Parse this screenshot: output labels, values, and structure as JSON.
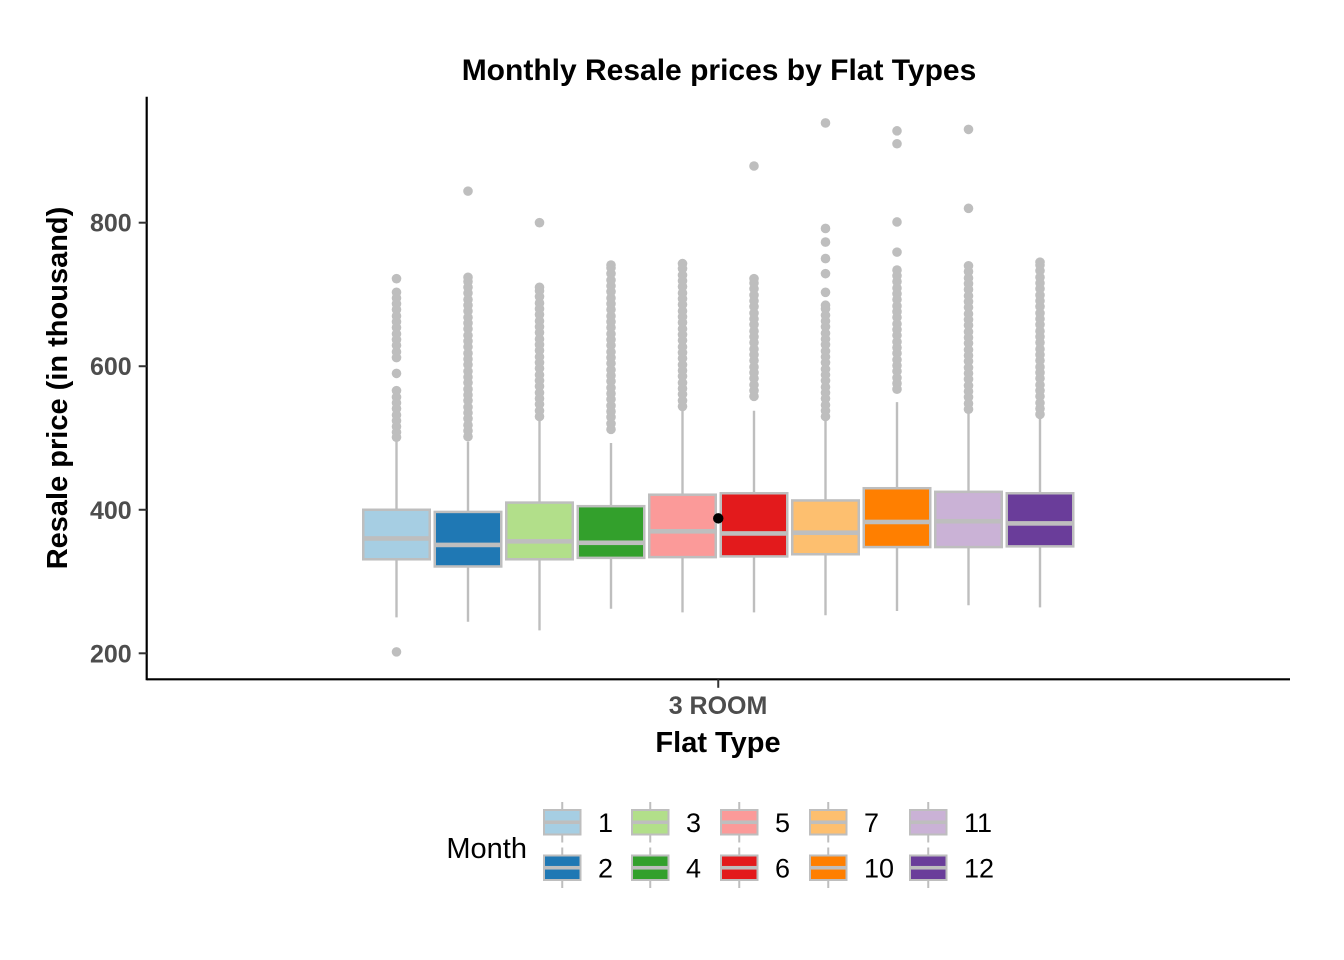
{
  "chart_data": {
    "type": "boxplot",
    "title": "Monthly Resale prices by Flat Types",
    "xlabel": "Flat Type",
    "ylabel": "Resale price (in thousand)",
    "category": "3 ROOM",
    "y_ticks": [
      "200",
      "400",
      "600",
      "800"
    ],
    "y_tick_values": [
      200,
      400,
      600,
      800
    ],
    "ylim": [
      164,
      976
    ],
    "grid": false,
    "legend_title": "Month",
    "legend_position": "bottom",
    "style_colors": {
      "box_border_gray": "#BEBEBE",
      "axis_line": "#000000",
      "tick_text": "#4D4D4D",
      "outlier_gray": "#BEBEBE",
      "special_point_black": "#000000"
    },
    "series": [
      {
        "month": "1",
        "color": "#A6CEE3",
        "lower": 250,
        "q1": 331,
        "median": 360,
        "q3": 400,
        "upper": 497,
        "outliers": [
          202,
          501,
          508,
          516,
          524,
          532,
          541,
          549,
          557,
          566,
          590,
          612,
          620,
          629,
          637,
          645,
          654,
          662,
          670,
          679,
          687,
          695,
          703,
          722
        ]
      },
      {
        "month": "2",
        "color": "#1F78B4",
        "lower": 244,
        "q1": 321,
        "median": 351,
        "q3": 397,
        "upper": 495,
        "outliers": [
          502,
          510,
          518,
          527,
          535,
          543,
          552,
          560,
          568,
          577,
          585,
          593,
          602,
          610,
          618,
          627,
          635,
          643,
          652,
          660,
          668,
          677,
          685,
          693,
          702,
          710,
          718,
          724,
          844
        ]
      },
      {
        "month": "3",
        "color": "#B2DF8A",
        "lower": 232,
        "q1": 331,
        "median": 356,
        "q3": 410,
        "upper": 525,
        "outliers": [
          530,
          538,
          547,
          555,
          563,
          572,
          580,
          588,
          597,
          605,
          613,
          622,
          630,
          638,
          647,
          655,
          663,
          672,
          680,
          688,
          697,
          705,
          710,
          800
        ]
      },
      {
        "month": "4",
        "color": "#33A02C",
        "lower": 262,
        "q1": 333,
        "median": 354,
        "q3": 405,
        "upper": 493,
        "outliers": [
          512,
          520,
          529,
          537,
          545,
          554,
          562,
          570,
          579,
          587,
          595,
          604,
          612,
          620,
          629,
          637,
          645,
          654,
          662,
          670,
          679,
          687,
          695,
          704,
          712,
          720,
          729,
          737,
          741
        ]
      },
      {
        "month": "5",
        "color": "#FB9A99",
        "lower": 257,
        "q1": 334,
        "median": 370,
        "q3": 421,
        "upper": 538,
        "outliers": [
          544,
          552,
          561,
          569,
          577,
          586,
          594,
          602,
          611,
          619,
          627,
          636,
          644,
          652,
          661,
          669,
          677,
          686,
          694,
          702,
          711,
          719,
          727,
          736,
          743
        ]
      },
      {
        "month": "6",
        "color": "#E31A1C",
        "lower": 257,
        "q1": 335,
        "median": 367,
        "q3": 423,
        "upper": 538,
        "outliers": [
          558,
          566,
          574,
          583,
          591,
          599,
          608,
          616,
          624,
          633,
          641,
          649,
          658,
          666,
          674,
          683,
          691,
          699,
          708,
          716,
          722,
          879
        ]
      },
      {
        "month": "7",
        "color": "#FDBF6F",
        "lower": 253,
        "q1": 338,
        "median": 368,
        "q3": 413,
        "upper": 527,
        "outliers": [
          530,
          538,
          546,
          555,
          563,
          571,
          580,
          588,
          596,
          605,
          613,
          621,
          630,
          638,
          646,
          655,
          663,
          671,
          680,
          685,
          703,
          729,
          750,
          773,
          792,
          939
        ]
      },
      {
        "month": "10",
        "color": "#FF7F00",
        "lower": 259,
        "q1": 348,
        "median": 383,
        "q3": 430,
        "upper": 550,
        "outliers": [
          568,
          576,
          584,
          593,
          601,
          609,
          618,
          626,
          634,
          643,
          651,
          659,
          668,
          676,
          684,
          693,
          701,
          709,
          718,
          726,
          734,
          759,
          801,
          910,
          928
        ]
      },
      {
        "month": "11",
        "color": "#CAB2D6",
        "lower": 267,
        "q1": 348,
        "median": 384,
        "q3": 425,
        "upper": 536,
        "outliers": [
          540,
          548,
          557,
          565,
          573,
          582,
          590,
          598,
          607,
          615,
          623,
          632,
          640,
          648,
          657,
          665,
          673,
          682,
          690,
          698,
          707,
          715,
          723,
          732,
          740,
          820,
          930
        ]
      },
      {
        "month": "12",
        "color": "#6A3D9A",
        "lower": 264,
        "q1": 349,
        "median": 381,
        "q3": 423,
        "upper": 530,
        "outliers": [
          533,
          541,
          549,
          558,
          566,
          574,
          583,
          591,
          599,
          608,
          616,
          624,
          633,
          641,
          649,
          658,
          666,
          674,
          683,
          691,
          699,
          708,
          716,
          724,
          733,
          741,
          745
        ]
      }
    ],
    "black_point": {
      "value": 388
    }
  }
}
